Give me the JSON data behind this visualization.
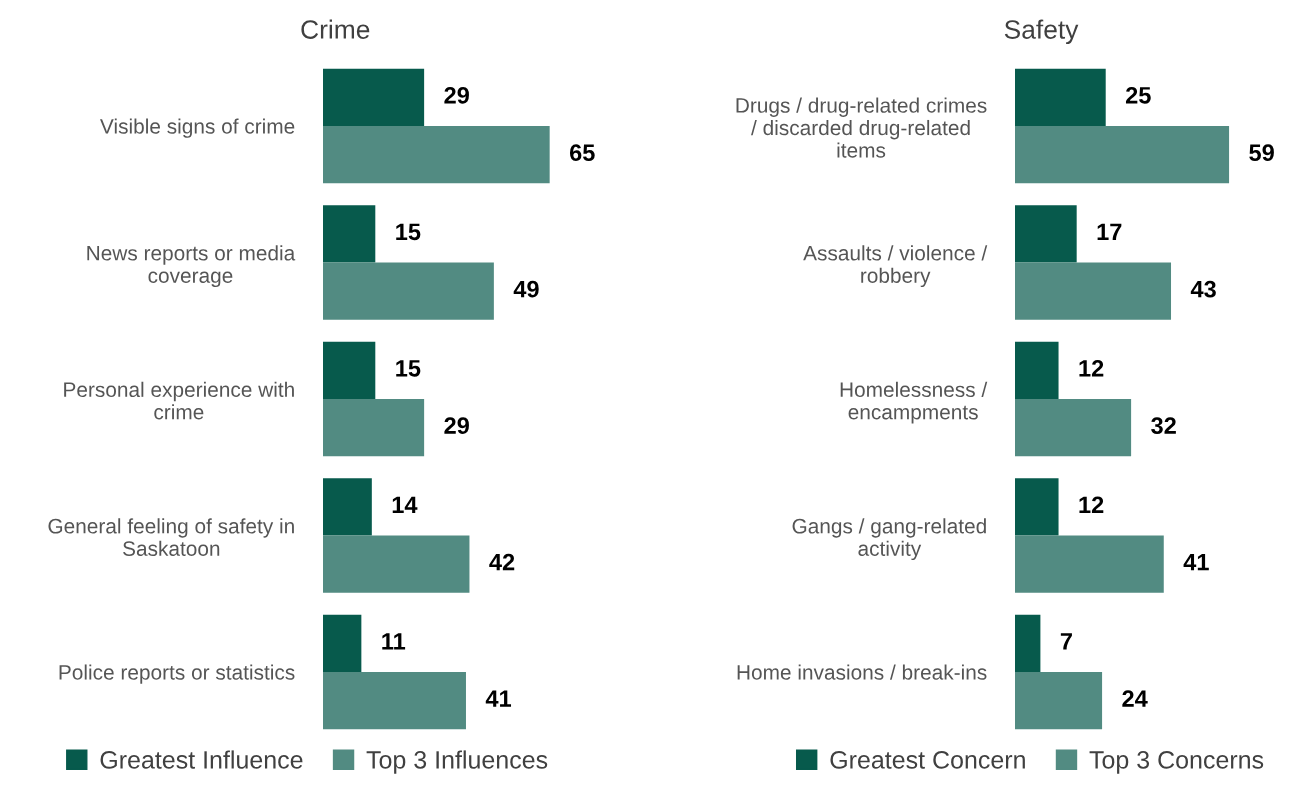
{
  "chart_data": [
    {
      "type": "bar",
      "orientation": "horizontal",
      "title": "Crime",
      "categories": [
        "Visible signs of crime",
        "News reports or media\ncoverage",
        "Personal experience with\ncrime",
        "General feeling of safety in\nSaskatoon",
        "Police reports or statistics"
      ],
      "series": [
        {
          "name": "Greatest Influence",
          "color": "#075a4c",
          "values": [
            29,
            15,
            15,
            14,
            11
          ]
        },
        {
          "name": "Top 3 Influences",
          "color": "#528b82",
          "values": [
            65,
            49,
            29,
            42,
            41
          ]
        }
      ],
      "data_labels": true,
      "legend": "bottom",
      "grid": false,
      "tick_labels": "y"
    },
    {
      "type": "bar",
      "orientation": "horizontal",
      "title": "Safety",
      "categories": [
        "Drugs / drug-related crimes\n/ discarded drug-related\nitems",
        "Assaults / violence /\nrobbery",
        "Homelessness /\nencampments",
        "Gangs / gang-related\nactivity",
        "Home invasions / break-ins"
      ],
      "series": [
        {
          "name": "Greatest Concern",
          "color": "#075a4c",
          "values": [
            25,
            17,
            12,
            12,
            7
          ]
        },
        {
          "name": "Top 3 Concerns",
          "color": "#528b82",
          "values": [
            59,
            43,
            32,
            41,
            24
          ]
        }
      ],
      "data_labels": true,
      "legend": "bottom",
      "grid": false,
      "tick_labels": "y"
    }
  ]
}
